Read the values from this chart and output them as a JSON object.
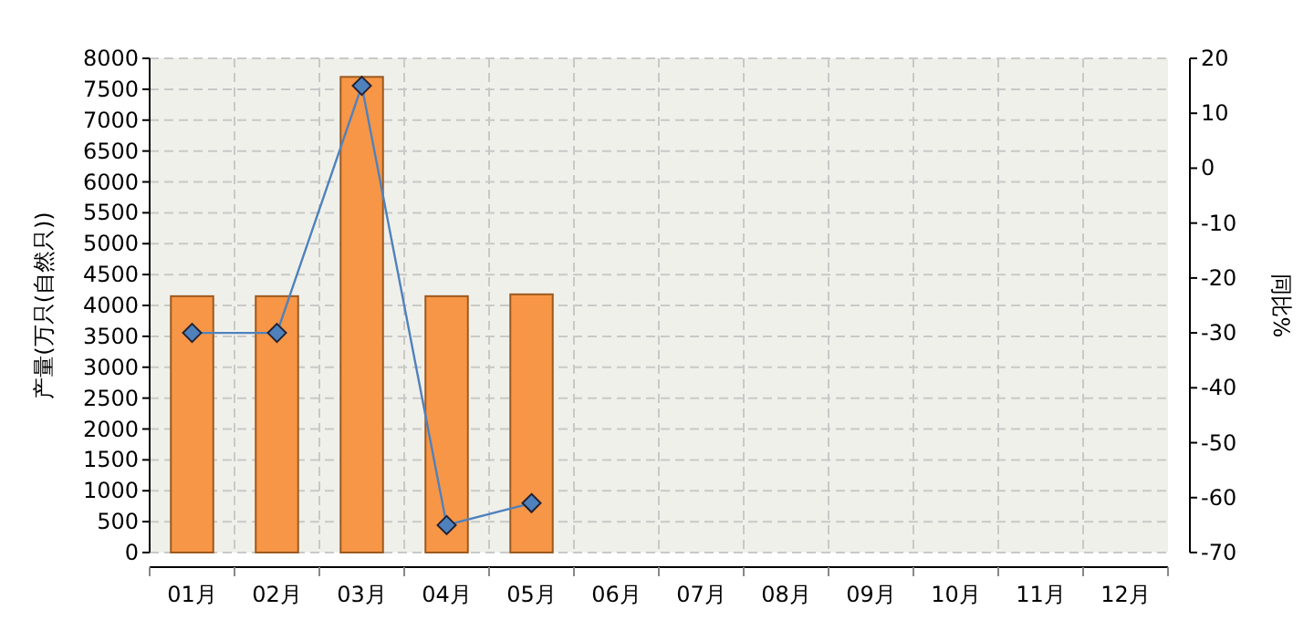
{
  "chart_data": {
    "type": "bar",
    "ylabel": "产量(万只(自然只))",
    "y2label": "同比%",
    "categories": [
      "01月",
      "02月",
      "03月",
      "04月",
      "05月",
      "06月",
      "07月",
      "08月",
      "09月",
      "10月",
      "11月",
      "12月"
    ],
    "series": [
      {
        "color": "#f79646",
        "values": [
          4150,
          4150,
          7700,
          4150,
          4180,
          null,
          null,
          null,
          null,
          null,
          null,
          null
        ]
      },
      {
        "type": "line",
        "axis": "y2",
        "color": "#4f81bd",
        "values": [
          -30,
          -30,
          15,
          -65,
          -61,
          null,
          null,
          null,
          null,
          null,
          null,
          null
        ]
      }
    ],
    "ylim": [
      0,
      8000
    ],
    "yticks": [
      0,
      500,
      1000,
      1500,
      2000,
      2500,
      3000,
      3500,
      4000,
      4500,
      5000,
      5500,
      6000,
      6500,
      7000,
      7500,
      8000
    ],
    "y2lim": [
      -70,
      20
    ],
    "y2ticks": [
      -70,
      -60,
      -50,
      -40,
      -30,
      -20,
      -10,
      0,
      10,
      20
    ],
    "grid": true,
    "marker": "diamond"
  }
}
